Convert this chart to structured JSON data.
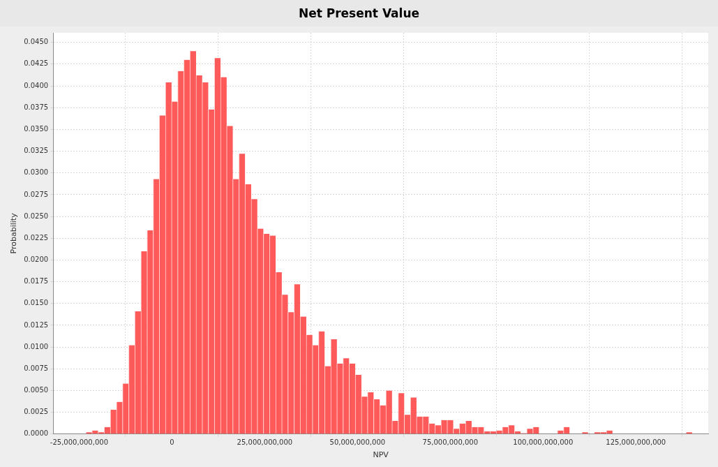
{
  "chart_data": {
    "type": "histogram",
    "title": "Net Present Value",
    "xlabel": "NPV",
    "ylabel": "Probability",
    "color": "#ff5a5a",
    "bins": [
      -23200000000,
      -21550000000,
      -19900000000,
      -18250000000,
      -16600000000,
      -14950000000,
      -13300000000,
      -11650000000,
      -10000000000,
      -8350000000,
      -6700000000,
      -5050000000,
      -3400000000,
      -1750000000,
      -100000000,
      1550000000,
      3200000000,
      4850000000,
      6500000000,
      8150000000,
      9800000000,
      11450000000,
      13100000000,
      14750000000,
      16400000000,
      18050000000,
      19700000000,
      21350000000,
      23000000000,
      24650000000,
      26300000000,
      27950000000,
      29600000000,
      31250000000,
      32900000000,
      34550000000,
      36200000000,
      37850000000,
      39500000000,
      41150000000,
      42800000000,
      44450000000,
      46100000000,
      47750000000,
      49400000000,
      51050000000,
      52700000000,
      54350000000,
      56000000000,
      57650000000,
      59300000000,
      60950000000,
      62600000000,
      64250000000,
      65900000000,
      67550000000,
      69200000000,
      70850000000,
      72500000000,
      74150000000,
      75800000000,
      77450000000,
      79100000000,
      80750000000,
      82400000000,
      84050000000,
      85700000000,
      87350000000,
      89000000000,
      90650000000,
      92300000000,
      93950000000,
      95600000000,
      97250000000,
      98900000000,
      100550000000,
      102200000000,
      103850000000,
      105500000000,
      107150000000,
      108800000000,
      110450000000,
      112100000000,
      113750000000,
      115400000000,
      117050000000,
      118700000000,
      120350000000,
      122000000000,
      123650000000,
      125300000000,
      126950000000,
      128600000000,
      130250000000,
      131900000000,
      133550000000,
      135200000000,
      136850000000,
      138500000000,
      140150000000
    ],
    "values": [
      0.0002,
      0.0004,
      0.0002,
      0.0008,
      0.0028,
      0.0037,
      0.0058,
      0.0102,
      0.0141,
      0.021,
      0.0234,
      0.0293,
      0.0366,
      0.0404,
      0.0382,
      0.0417,
      0.043,
      0.044,
      0.0412,
      0.0404,
      0.0373,
      0.0432,
      0.041,
      0.0354,
      0.0293,
      0.0322,
      0.0287,
      0.027,
      0.0236,
      0.023,
      0.0228,
      0.0186,
      0.016,
      0.014,
      0.0172,
      0.0135,
      0.0114,
      0.0102,
      0.0118,
      0.0078,
      0.0109,
      0.0081,
      0.0087,
      0.0081,
      0.0068,
      0.0043,
      0.0048,
      0.004,
      0.0033,
      0.005,
      0.0015,
      0.0047,
      0.0022,
      0.0042,
      0.002,
      0.002,
      0.0012,
      0.001,
      0.0016,
      0.0016,
      0.0006,
      0.0012,
      0.0015,
      0.0008,
      0.0008,
      0.0003,
      0.0003,
      0.0004,
      0.0008,
      0.001,
      0.0003,
      0.0001,
      0.0006,
      0.0008,
      0,
      0,
      0,
      0.0004,
      0.0008,
      0,
      0,
      0.0002,
      0,
      0.0002,
      0.0002,
      0.0004,
      0,
      0,
      0,
      0,
      0,
      0,
      0,
      0,
      0,
      0,
      0,
      0,
      0.0002
    ],
    "xlim": [
      -32000000000,
      144500000000
    ],
    "xticks": [
      {
        "value": -25000000000,
        "label": "-25,000,000,000"
      },
      {
        "value": 0,
        "label": "0"
      },
      {
        "value": 25000000000,
        "label": "25,000,000,000"
      },
      {
        "value": 50000000000,
        "label": "50,000,000,000"
      },
      {
        "value": 75000000000,
        "label": "75,000,000,000"
      },
      {
        "value": 100000000000,
        "label": "100,000,000,000"
      },
      {
        "value": 125000000000,
        "label": "125,000,000,000"
      }
    ],
    "ylim": [
      0,
      0.0461
    ],
    "yticks": [
      {
        "value": 0,
        "label": "0.0000"
      },
      {
        "value": 0.0025,
        "label": "0.0025"
      },
      {
        "value": 0.005,
        "label": "0.0050"
      },
      {
        "value": 0.0075,
        "label": "0.0075"
      },
      {
        "value": 0.01,
        "label": "0.0100"
      },
      {
        "value": 0.0125,
        "label": "0.0125"
      },
      {
        "value": 0.015,
        "label": "0.0150"
      },
      {
        "value": 0.0175,
        "label": "0.0175"
      },
      {
        "value": 0.02,
        "label": "0.0200"
      },
      {
        "value": 0.0225,
        "label": "0.0225"
      },
      {
        "value": 0.025,
        "label": "0.0250"
      },
      {
        "value": 0.0275,
        "label": "0.0275"
      },
      {
        "value": 0.03,
        "label": "0.0300"
      },
      {
        "value": 0.0325,
        "label": "0.0325"
      },
      {
        "value": 0.035,
        "label": "0.0350"
      },
      {
        "value": 0.0375,
        "label": "0.0375"
      },
      {
        "value": 0.04,
        "label": "0.0400"
      },
      {
        "value": 0.0425,
        "label": "0.0425"
      },
      {
        "value": 0.045,
        "label": "0.0450"
      }
    ],
    "grid": true,
    "legend": false
  }
}
